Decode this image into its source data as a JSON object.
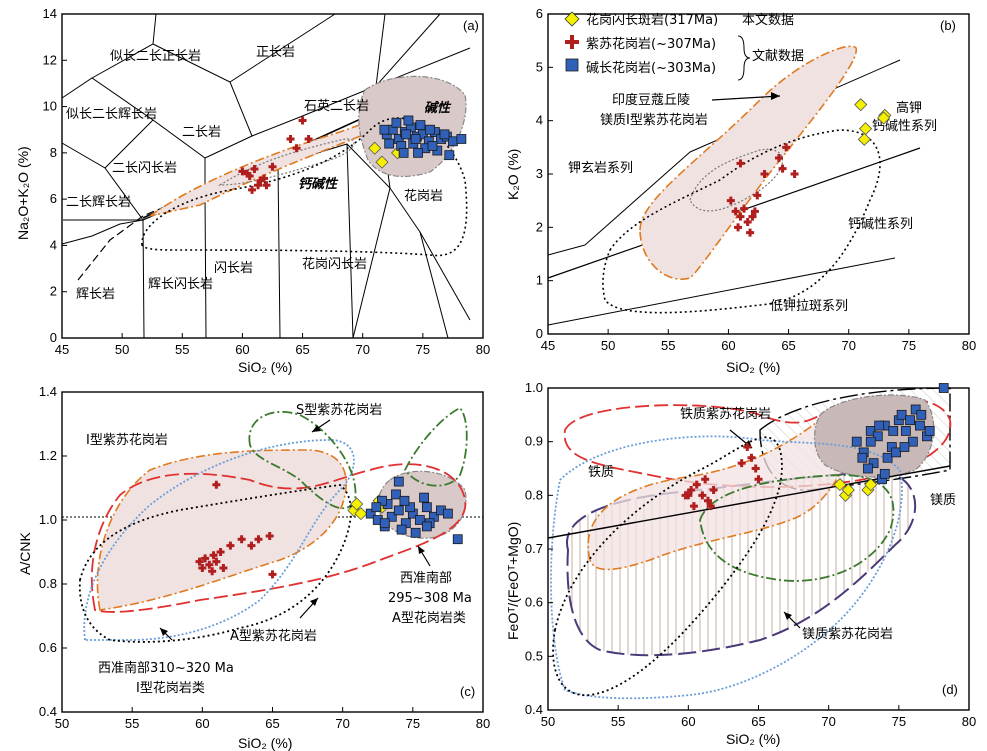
{
  "chart_data": [
    {
      "type": "scatter",
      "panel": "(a)",
      "xlabel": "SiO₂ (%)",
      "ylabel": "Na₂O+K₂O (%)",
      "xlim": [
        45,
        80
      ],
      "ylim": [
        0,
        14
      ],
      "xticks": [
        45,
        50,
        55,
        60,
        65,
        70,
        75,
        80
      ],
      "yticks": [
        0,
        2,
        4,
        6,
        8,
        10,
        12,
        14
      ],
      "field_labels": [
        "似长二长正长岩",
        "正长岩",
        "似长二长辉长岩",
        "二长岩",
        "石英二长岩",
        "碱性",
        "二长闪长岩",
        "钙碱性",
        "二长辉长岩",
        "花岗岩",
        "辉长岩",
        "辉长闪长岩",
        "闪长岩",
        "花岗闪长岩"
      ],
      "series": [
        {
          "name": "花岗闪长斑岩(317Ma)",
          "marker": "diamond",
          "color": "#f5f000",
          "x": [
            71.0,
            71.6,
            72.9
          ],
          "y": [
            8.2,
            7.6,
            8.0
          ]
        },
        {
          "name": "紫苏花岗岩(~307Ma)",
          "marker": "cross",
          "color": "#b01e1e",
          "x": [
            60.0,
            60.6,
            61.0,
            61.5,
            62.0,
            60.8,
            61.3,
            62.5,
            64.0,
            64.5,
            65.5,
            65.0,
            61.8,
            60.4
          ],
          "y": [
            7.2,
            7.0,
            7.3,
            6.8,
            6.6,
            6.4,
            6.6,
            7.4,
            8.6,
            8.2,
            8.6,
            9.4,
            6.9,
            7.1
          ]
        },
        {
          "name": "碱长花岗岩(~303Ma)",
          "marker": "square",
          "color": "#3060b8",
          "x": [
            72,
            72.5,
            73,
            73.5,
            74,
            74.5,
            75,
            75.5,
            76,
            76.5,
            77,
            73.2,
            74.2,
            75.2,
            76.2,
            77.5,
            72.8,
            73.8,
            74.8,
            72.2,
            73.4,
            74.6,
            75.8,
            77.2,
            76.8,
            78.2,
            71.8,
            73.6,
            74.4,
            75.6
          ],
          "y": [
            8.8,
            9.0,
            8.6,
            8.9,
            9.1,
            8.7,
            8.8,
            8.5,
            8.9,
            8.6,
            8.7,
            8.3,
            8.4,
            8.2,
            8.1,
            8.5,
            9.3,
            9.4,
            9.2,
            8.4,
            8.0,
            8.0,
            8.3,
            7.9,
            8.8,
            8.6,
            9.0,
            8.8,
            8.6,
            9.0
          ]
        }
      ]
    },
    {
      "type": "scatter",
      "panel": "(b)",
      "xlabel": "SiO₂ (%)",
      "ylabel": "K₂O (%)",
      "xlim": [
        45,
        80
      ],
      "ylim": [
        0,
        6
      ],
      "xticks": [
        45,
        50,
        55,
        60,
        65,
        70,
        75,
        80
      ],
      "yticks": [
        0,
        1,
        2,
        3,
        4,
        5,
        6
      ],
      "field_labels": [
        "高钾钙碱性系列",
        "钾玄岩系列",
        "钙碱性系列",
        "低钾拉斑系列"
      ],
      "annotation": "印度豆蔻丘陵镁质I型紫苏花岗岩",
      "legend": [
        {
          "label": "花岗闪长斑岩(317Ma)",
          "note": "本文数据"
        },
        {
          "label": "紫苏花岗岩(~307Ma)",
          "note": "文献数据"
        },
        {
          "label": "碱长花岗岩(~303Ma)",
          "note": ""
        }
      ],
      "series": [
        {
          "name": "花岗闪长斑岩(317Ma)",
          "marker": "diamond",
          "color": "#f5f000",
          "x": [
            71.0,
            71.4,
            71.3,
            73.0,
            72.9
          ],
          "y": [
            4.3,
            3.85,
            3.65,
            4.1,
            4.05
          ]
        },
        {
          "name": "紫苏花岗岩(~307Ma)",
          "marker": "cross",
          "color": "#b01e1e",
          "x": [
            60.2,
            60.6,
            61.0,
            61.3,
            61.6,
            62.0,
            61.8,
            60.8,
            62.4,
            63.0,
            64.2,
            64.5,
            64.8,
            65.5,
            61.0,
            62.2
          ],
          "y": [
            2.5,
            2.3,
            2.2,
            2.35,
            2.1,
            2.2,
            1.9,
            2.0,
            2.6,
            3.0,
            3.3,
            3.1,
            3.5,
            3.0,
            3.2,
            2.3
          ]
        },
        {
          "name": "碱长花岗岩(~303Ma)",
          "marker": "square",
          "color": "#3060b8",
          "x": [],
          "y": []
        }
      ]
    },
    {
      "type": "scatter",
      "panel": "(c)",
      "xlabel": "SiO₂ (%)",
      "ylabel": "A/CNK",
      "xlim": [
        50,
        80
      ],
      "ylim": [
        0.4,
        1.4
      ],
      "xticks": [
        50,
        55,
        60,
        65,
        70,
        75,
        80
      ],
      "yticks": [
        0.4,
        0.6,
        0.8,
        1.0,
        1.2,
        1.4
      ],
      "field_labels": [
        "I型紫苏花岗岩",
        "S型紫苏花岗岩",
        "A型紫苏花岗岩"
      ],
      "annotations": [
        "西准南部310~320 Ma",
        "I型花岗岩类",
        "西准南部",
        "295~308 Ma",
        "A型花岗岩类"
      ],
      "series": [
        {
          "name": "花岗闪长斑岩(317Ma)",
          "marker": "diamond",
          "color": "#f5f000",
          "x": [
            70.8,
            71.0,
            71.3,
            72.6,
            72.8
          ],
          "y": [
            1.03,
            1.05,
            1.02,
            1.06,
            1.04
          ]
        },
        {
          "name": "紫苏花岗岩(~307Ma)",
          "marker": "cross",
          "color": "#b01e1e",
          "x": [
            59.8,
            60.2,
            60.5,
            60.8,
            61.0,
            61.3,
            61.5,
            60.0,
            60.7,
            62.0,
            62.8,
            63.5,
            64.0,
            65.0,
            61.0,
            64.8
          ],
          "y": [
            0.87,
            0.88,
            0.86,
            0.89,
            0.87,
            0.9,
            0.85,
            0.85,
            0.84,
            0.92,
            0.94,
            0.92,
            0.94,
            0.83,
            1.11,
            0.95
          ]
        },
        {
          "name": "碱长花岗岩(~303Ma)",
          "marker": "square",
          "color": "#3060b8",
          "x": [
            72,
            72.5,
            73,
            73.5,
            74,
            74.5,
            75,
            75.5,
            76,
            76.5,
            77,
            73.2,
            74.2,
            75.2,
            76.2,
            72.8,
            73.8,
            74.8,
            75.8,
            77.5,
            74.0,
            73.0,
            76.0,
            78.2,
            72.4,
            74.4
          ],
          "y": [
            1.02,
            1.0,
            0.98,
            1.01,
            1.03,
            0.99,
            1.02,
            1.0,
            1.04,
            1.01,
            1.03,
            1.05,
            0.97,
            0.96,
            0.99,
            1.06,
            1.08,
            1.04,
            1.07,
            1.02,
            1.12,
            0.99,
            0.98,
            0.94,
            1.04,
            1.06
          ]
        }
      ]
    },
    {
      "type": "scatter",
      "panel": "(d)",
      "xlabel": "SiO₂ (%)",
      "ylabel": "FeOᵀ/(FeOᵀ+MgO)",
      "xlim": [
        50,
        80
      ],
      "ylim": [
        0.4,
        1.0
      ],
      "xticks": [
        50,
        55,
        60,
        65,
        70,
        75,
        80
      ],
      "yticks": [
        0.4,
        0.5,
        0.6,
        0.7,
        0.8,
        0.9,
        1.0
      ],
      "field_labels": [
        "铁质紫苏花岗岩",
        "铁质",
        "镁质",
        "镁质紫苏花岗岩"
      ],
      "series": [
        {
          "name": "花岗闪长斑岩(317Ma)",
          "marker": "diamond",
          "color": "#f5f000",
          "x": [
            70.8,
            71.2,
            71.4,
            72.8,
            73.0
          ],
          "y": [
            0.82,
            0.8,
            0.81,
            0.81,
            0.82
          ]
        },
        {
          "name": "紫苏花岗岩(~307Ma)",
          "marker": "cross",
          "color": "#b01e1e",
          "x": [
            59.8,
            60.2,
            60.6,
            61.0,
            61.4,
            61.8,
            60.4,
            61.2,
            60.0,
            64.2,
            64.5,
            64.8,
            63.8,
            65.0,
            61.6
          ],
          "y": [
            0.8,
            0.81,
            0.82,
            0.8,
            0.79,
            0.81,
            0.78,
            0.83,
            0.8,
            0.89,
            0.87,
            0.85,
            0.86,
            0.83,
            0.78
          ]
        },
        {
          "name": "碱长花岗岩(~303Ma)",
          "marker": "square",
          "color": "#3060b8",
          "x": [
            72,
            72.5,
            73,
            73.5,
            74,
            74.5,
            75,
            75.5,
            76,
            76.5,
            77,
            73.2,
            74.2,
            75.2,
            76.2,
            72.8,
            73.8,
            74.8,
            75.8,
            77.2,
            74.0,
            73.0,
            76.6,
            78.2,
            72.4,
            74.6,
            75.4,
            73.6
          ],
          "y": [
            0.9,
            0.88,
            0.92,
            0.91,
            0.93,
            0.89,
            0.94,
            0.92,
            0.9,
            0.93,
            0.91,
            0.86,
            0.87,
            0.95,
            0.96,
            0.85,
            0.83,
            0.88,
            0.94,
            0.92,
            0.84,
            0.9,
            0.95,
            1.0,
            0.87,
            0.92,
            0.89,
            0.93
          ]
        }
      ]
    }
  ]
}
